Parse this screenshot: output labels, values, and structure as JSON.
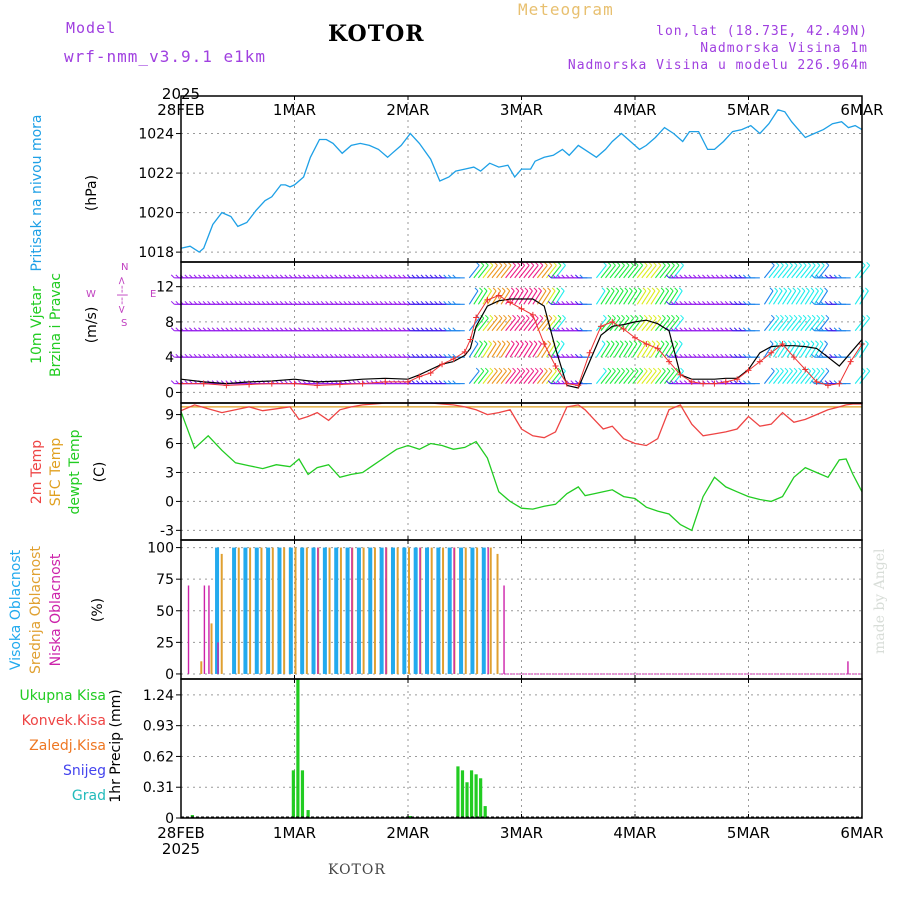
{
  "header": {
    "model_label": "Model",
    "model_name": "wrf-nmm_v3.9.1  e1km",
    "location": "KOTOR",
    "product": "Meteogram",
    "coords": "lon,lat (18.73E, 42.49N)",
    "elevation": "Nadmorska Visina 1m",
    "model_elevation": "Nadmorska Visina u modelu 226.964m"
  },
  "footer": {
    "location": "KOTOR"
  },
  "watermark": "made by Angel",
  "time_axis": {
    "year": "2025",
    "labels": [
      "28FEB",
      "1MAR",
      "2MAR",
      "3MAR",
      "4MAR",
      "5MAR",
      "6MAR"
    ]
  },
  "colors": {
    "pressure": "#1ea0e6",
    "temp_2m": "#ee4444",
    "sfc_temp": "#e0a020",
    "dewpoint": "#22cc22",
    "cloud_high": "#22aaee",
    "cloud_mid": "#e0a030",
    "cloud_low": "#cc22aa",
    "precip_total": "#22cc22",
    "header_purple": "#a040e0",
    "header_gold": "#e8c070"
  },
  "chart_data": [
    {
      "type": "line",
      "name": "pressure",
      "ylabel_lines": [
        "Pritisak na nivou mora"
      ],
      "unit": "(hPa)",
      "ylim": [
        1017.5,
        1025.9
      ],
      "yticks": [
        1018,
        1020,
        1022,
        1024
      ],
      "grid": true,
      "x_days": [
        0,
        0.08,
        0.16,
        0.2,
        0.28,
        0.36,
        0.44,
        0.5,
        0.58,
        0.66,
        0.74,
        0.8,
        0.88,
        0.92,
        0.96,
        1.0,
        1.08,
        1.14,
        1.22,
        1.28,
        1.34,
        1.42,
        1.5,
        1.58,
        1.66,
        1.74,
        1.82,
        1.86,
        1.94,
        2.02,
        2.1,
        2.2,
        2.28,
        2.36,
        2.42,
        2.5,
        2.58,
        2.64,
        2.72,
        2.8,
        2.88,
        2.94,
        3.0,
        3.08,
        3.12,
        3.2,
        3.28,
        3.36,
        3.42,
        3.5,
        3.58,
        3.66,
        3.74,
        3.8,
        3.88,
        3.96,
        4.04,
        4.1,
        4.18,
        4.26,
        4.34,
        4.42,
        4.48,
        4.56,
        4.64,
        4.7,
        4.78,
        4.86,
        4.94,
        5.02,
        5.1,
        5.18,
        5.26,
        5.32,
        5.38,
        5.44,
        5.5,
        5.58,
        5.66,
        5.74,
        5.82,
        5.88,
        5.94,
        6.0
      ],
      "values": [
        1018.2,
        1018.3,
        1018.0,
        1018.2,
        1019.4,
        1020.0,
        1019.8,
        1019.3,
        1019.5,
        1020.1,
        1020.6,
        1020.8,
        1021.4,
        1021.4,
        1021.3,
        1021.4,
        1021.8,
        1022.8,
        1023.7,
        1023.7,
        1023.5,
        1023.0,
        1023.4,
        1023.5,
        1023.4,
        1023.2,
        1022.8,
        1023.0,
        1023.4,
        1024.0,
        1023.5,
        1022.7,
        1021.6,
        1021.8,
        1022.1,
        1022.2,
        1022.3,
        1022.1,
        1022.5,
        1022.3,
        1022.4,
        1021.8,
        1022.2,
        1022.2,
        1022.6,
        1022.8,
        1022.9,
        1023.2,
        1022.9,
        1023.4,
        1023.1,
        1022.8,
        1023.2,
        1023.6,
        1024.0,
        1023.6,
        1023.2,
        1023.4,
        1023.8,
        1024.3,
        1024.0,
        1023.6,
        1024.1,
        1024.1,
        1023.2,
        1023.2,
        1023.6,
        1024.1,
        1024.2,
        1024.4,
        1024.0,
        1024.5,
        1025.2,
        1025.1,
        1024.6,
        1024.2,
        1023.8,
        1024.0,
        1024.2,
        1024.5,
        1024.6,
        1024.3,
        1024.4,
        1024.2
      ]
    },
    {
      "type": "line",
      "name": "wind",
      "ylabel_lines": [
        "10m Vjetar",
        "Brzina i Pravac"
      ],
      "unit": "(m/s)",
      "direction_legend": {
        "w": "W",
        "e": "E",
        "n": "N",
        "s": "S"
      },
      "ylim": [
        -1.2,
        14.8
      ],
      "yticks": [
        0,
        4,
        8,
        12
      ],
      "grid": true,
      "barb_levels": [
        1,
        4,
        7,
        10,
        13
      ],
      "x_days": [
        0,
        0.2,
        0.4,
        0.6,
        0.8,
        1.0,
        1.2,
        1.4,
        1.6,
        1.8,
        2.0,
        2.1,
        2.2,
        2.3,
        2.4,
        2.5,
        2.55,
        2.6,
        2.7,
        2.8,
        2.9,
        3.0,
        3.1,
        3.2,
        3.3,
        3.4,
        3.5,
        3.6,
        3.7,
        3.8,
        3.9,
        4.0,
        4.1,
        4.2,
        4.3,
        4.4,
        4.5,
        4.6,
        4.7,
        4.8,
        4.9,
        5.0,
        5.1,
        5.2,
        5.3,
        5.4,
        5.5,
        5.6,
        5.7,
        5.8,
        5.9,
        6.0
      ],
      "values": [
        1.5,
        1.2,
        1.0,
        1.2,
        1.3,
        1.5,
        1.2,
        1.3,
        1.5,
        1.6,
        1.5,
        2.0,
        2.6,
        3.2,
        3.5,
        4.2,
        5.0,
        7.5,
        9.8,
        10.4,
        10.6,
        10.6,
        10.6,
        9.8,
        5.0,
        0.8,
        0.5,
        3.5,
        6.5,
        7.5,
        7.7,
        8.0,
        8.2,
        7.8,
        7.0,
        2.0,
        1.5,
        1.5,
        1.5,
        1.6,
        1.6,
        2.6,
        4.5,
        5.2,
        5.3,
        5.3,
        5.2,
        5.0,
        4.0,
        3.0,
        4.5,
        6.0
      ],
      "gust_values": [
        1.0,
        1.0,
        0.8,
        0.9,
        1.0,
        1.0,
        0.8,
        0.9,
        1.0,
        1.2,
        1.2,
        1.8,
        2.2,
        3.2,
        3.8,
        4.6,
        6.0,
        8.5,
        10.5,
        11.0,
        10.2,
        9.5,
        8.8,
        5.5,
        3.0,
        1.0,
        0.8,
        4.5,
        7.5,
        8.0,
        7.2,
        6.2,
        5.5,
        5.0,
        3.5,
        2.0,
        1.2,
        1.0,
        1.0,
        1.2,
        1.5,
        2.5,
        3.5,
        4.5,
        5.5,
        4.0,
        2.6,
        1.2,
        0.8,
        1.0,
        3.5,
        5.5
      ]
    },
    {
      "type": "line",
      "name": "temperature",
      "ylabel_lines": [
        "2m Temp",
        "SFC Temp",
        "dewpt Temp"
      ],
      "unit": "(C)",
      "ylim": [
        -4.0,
        10.2
      ],
      "yticks": [
        -3,
        0,
        3,
        6,
        9
      ],
      "grid": true,
      "sfc_temp_value": 9.8,
      "x_days": [
        0,
        0.12,
        0.24,
        0.36,
        0.48,
        0.6,
        0.72,
        0.84,
        0.96,
        1.04,
        1.12,
        1.2,
        1.3,
        1.4,
        1.5,
        1.6,
        1.7,
        1.8,
        1.9,
        2.0,
        2.1,
        2.2,
        2.3,
        2.4,
        2.5,
        2.6,
        2.7,
        2.8,
        2.9,
        3.0,
        3.1,
        3.2,
        3.3,
        3.4,
        3.5,
        3.56,
        3.64,
        3.72,
        3.8,
        3.9,
        4.0,
        4.1,
        4.2,
        4.3,
        4.4,
        4.5,
        4.6,
        4.7,
        4.8,
        4.9,
        5.0,
        5.1,
        5.2,
        5.3,
        5.4,
        5.5,
        5.6,
        5.7,
        5.8,
        5.86,
        5.92,
        6.0
      ],
      "values": [
        9.4,
        10.0,
        9.6,
        9.2,
        9.5,
        9.8,
        9.4,
        9.6,
        9.8,
        8.5,
        8.8,
        9.2,
        8.4,
        9.5,
        9.8,
        10.0,
        10.1,
        10.2,
        10.2,
        10.2,
        10.2,
        10.2,
        10.1,
        10.0,
        9.8,
        9.5,
        9.0,
        9.2,
        9.5,
        7.5,
        6.8,
        6.6,
        7.2,
        9.8,
        10.0,
        9.5,
        8.5,
        7.5,
        7.8,
        6.5,
        6.0,
        5.8,
        6.5,
        9.5,
        10.0,
        8.0,
        6.8,
        7.0,
        7.2,
        7.5,
        8.8,
        7.8,
        8.0,
        9.2,
        8.2,
        8.5,
        9.0,
        9.5,
        9.8,
        10.0,
        10.1,
        10.1
      ],
      "dew_values": [
        9.3,
        5.5,
        6.8,
        5.3,
        4.0,
        3.7,
        3.4,
        3.8,
        3.6,
        4.4,
        2.8,
        3.5,
        3.8,
        2.5,
        2.8,
        3.0,
        3.8,
        4.6,
        5.4,
        5.8,
        5.4,
        6.0,
        5.8,
        5.4,
        5.6,
        6.2,
        4.5,
        1.0,
        0.0,
        -0.7,
        -0.8,
        -0.5,
        -0.3,
        0.8,
        1.5,
        0.6,
        0.8,
        1.0,
        1.2,
        0.5,
        0.3,
        -0.6,
        -1.0,
        -1.3,
        -2.4,
        -3.0,
        0.5,
        2.5,
        1.5,
        1.0,
        0.5,
        0.2,
        0.0,
        0.5,
        2.5,
        3.5,
        3.0,
        2.5,
        4.3,
        4.4,
        2.8,
        1.0
      ]
    },
    {
      "type": "bar",
      "name": "cloud_cover",
      "ylabel_lines": [
        "Visoka Oblacnost",
        "Srednja Oblacnost",
        "Niska Oblacnost"
      ],
      "unit": "(%)",
      "ylim": [
        -4,
        106
      ],
      "yticks": [
        0,
        25,
        50,
        75,
        100
      ],
      "grid": true,
      "series": [
        {
          "name": "Visoka Oblacnost",
          "x_days": [
            0.3,
            0.45,
            0.55,
            0.65,
            0.75,
            0.85,
            0.95,
            1.05,
            1.15,
            1.25,
            1.35,
            1.45,
            1.55,
            1.65,
            1.75,
            1.85,
            1.95,
            2.05,
            2.15,
            2.25,
            2.35,
            2.45,
            2.55,
            2.65
          ],
          "values": [
            100,
            100,
            100,
            100,
            100,
            100,
            100,
            100,
            100,
            100,
            100,
            100,
            100,
            100,
            100,
            100,
            100,
            100,
            100,
            100,
            100,
            100,
            100,
            100
          ]
        },
        {
          "name": "Srednja Oblacnost",
          "x_days": [
            0.17,
            0.26,
            0.35,
            0.5,
            0.6,
            0.7,
            0.8,
            0.9,
            1.0,
            1.1,
            1.2,
            1.3,
            1.4,
            1.5,
            1.6,
            1.7,
            1.8,
            1.9,
            2.0,
            2.1,
            2.2,
            2.3,
            2.4,
            2.5,
            2.6,
            2.72,
            2.78
          ],
          "values": [
            10,
            40,
            95,
            100,
            100,
            100,
            100,
            100,
            100,
            100,
            100,
            100,
            100,
            100,
            100,
            100,
            100,
            100,
            100,
            100,
            100,
            100,
            100,
            100,
            100,
            100,
            95
          ]
        },
        {
          "name": "Niska Oblacnost",
          "x_days": [
            0.06,
            0.2,
            0.24,
            0.32,
            1.2,
            1.5,
            1.8,
            2.1,
            2.4,
            2.7,
            2.84,
            5.87
          ],
          "values": [
            70,
            70,
            70,
            25,
            100,
            100,
            100,
            100,
            100,
            100,
            70,
            10
          ]
        }
      ]
    },
    {
      "type": "bar",
      "name": "precipitation",
      "ylabel_lines": [
        "1hr Precip (mm)"
      ],
      "legend": [
        "Ukupna Kisa",
        "Konvek.Kisa",
        "Zaledj.Kisa",
        "Snijeg",
        "Grad"
      ],
      "legend_colors": [
        "#22cc22",
        "#ee4444",
        "#ee7722",
        "#4444ee",
        "#22bbbb"
      ],
      "ylim": [
        0,
        1.4
      ],
      "yticks": [
        0,
        0.31,
        0.62,
        0.93,
        1.24
      ],
      "ytick_labels": [
        "0",
        "0.31",
        "0.62",
        "0.93",
        "1.24"
      ],
      "grid": true,
      "x_days": [
        0.1,
        0.99,
        1.03,
        1.07,
        1.12,
        2.02,
        2.44,
        2.48,
        2.52,
        2.56,
        2.6,
        2.64,
        2.68
      ],
      "values": [
        0.03,
        0.48,
        1.4,
        0.48,
        0.08,
        0.02,
        0.52,
        0.48,
        0.36,
        0.48,
        0.44,
        0.4,
        0.12
      ]
    }
  ]
}
